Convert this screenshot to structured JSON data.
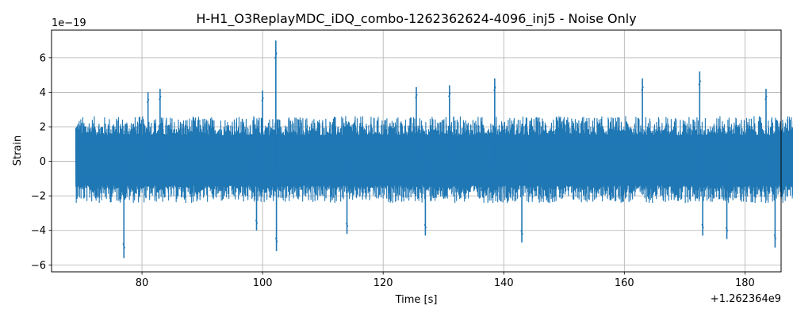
{
  "chart_data": {
    "type": "line",
    "title": "H-H1_O3ReplayMDC_iDQ_combo-1262362624-4096_inj5 - Noise Only",
    "xlabel": "Time [s]",
    "ylabel": "Strain",
    "x_offset_label": "+1.262364e9",
    "y_scale_label": "1e−19",
    "xlim": [
      65,
      186
    ],
    "ylim": [
      -6.4,
      7.6
    ],
    "xticks": [
      80,
      100,
      120,
      140,
      160,
      180
    ],
    "yticks": [
      -6,
      -4,
      -2,
      0,
      2,
      4,
      6
    ],
    "xtick_labels": [
      "80",
      "100",
      "120",
      "140",
      "160",
      "180"
    ],
    "ytick_labels": [
      "−6",
      "−4",
      "−2",
      "0",
      "2",
      "4",
      "6"
    ],
    "grid": true,
    "series": [
      {
        "color": "#1f77b4",
        "x_start": 69,
        "x_end": 189,
        "typical_amplitude": [
          -2.4,
          2.6
        ],
        "peak_events": [
          {
            "x": 77.0,
            "y": -5.6
          },
          {
            "x": 81.0,
            "y": 4.0
          },
          {
            "x": 83.0,
            "y": 4.2
          },
          {
            "x": 99.0,
            "y": -4.0
          },
          {
            "x": 100.0,
            "y": 4.1
          },
          {
            "x": 102.2,
            "y": 7.0
          },
          {
            "x": 102.3,
            "y": -5.2
          },
          {
            "x": 114.0,
            "y": -4.2
          },
          {
            "x": 125.5,
            "y": 4.3
          },
          {
            "x": 127.0,
            "y": -4.3
          },
          {
            "x": 131.0,
            "y": 4.4
          },
          {
            "x": 138.5,
            "y": 4.8
          },
          {
            "x": 143.0,
            "y": -4.7
          },
          {
            "x": 163.0,
            "y": 4.8
          },
          {
            "x": 172.5,
            "y": 5.2
          },
          {
            "x": 173.0,
            "y": -4.3
          },
          {
            "x": 177.0,
            "y": -4.5
          },
          {
            "x": 183.5,
            "y": 4.2
          },
          {
            "x": 185.0,
            "y": -5.0
          }
        ]
      }
    ]
  }
}
